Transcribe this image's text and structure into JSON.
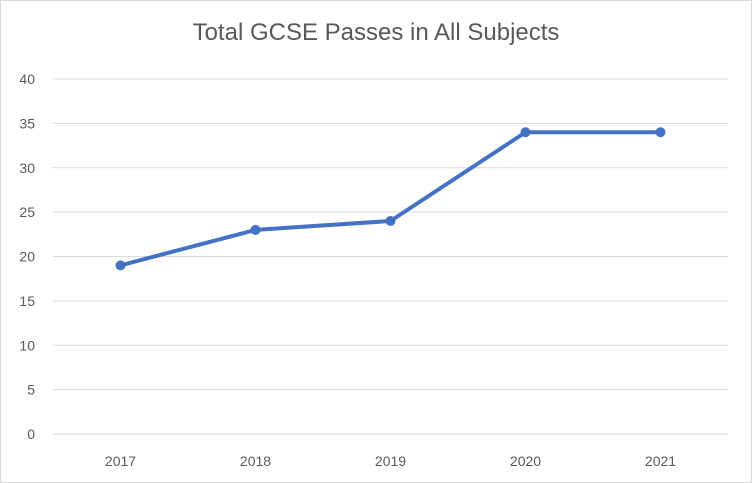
{
  "chart_data": {
    "type": "line",
    "title": "Total GCSE Passes in All Subjects",
    "xlabel": "",
    "ylabel": "",
    "categories": [
      "2017",
      "2018",
      "2019",
      "2020",
      "2021"
    ],
    "series": [
      {
        "values": [
          19,
          23,
          24,
          34,
          34
        ],
        "color": "#4472c4"
      }
    ],
    "ylim": [
      0,
      40
    ],
    "yticks": [
      0,
      5,
      10,
      15,
      20,
      25,
      30,
      35,
      40
    ],
    "grid": true,
    "legend": "none",
    "colors": {
      "gridline": "#d9d9d9",
      "text": "#595959",
      "border": "#d9d9d9"
    }
  }
}
